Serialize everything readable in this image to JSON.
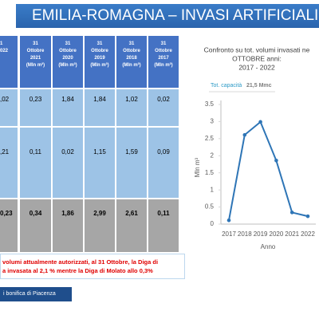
{
  "header": {
    "title": "EMILIA-ROMAGNA – INVASI ARTIFICIALI"
  },
  "table": {
    "header": [
      [
        "1",
        "022"
      ],
      [
        "31",
        "Ottobre",
        "2021",
        "(Mln m³)"
      ],
      [
        "31",
        "Ottobre",
        "2020",
        "(Mln m³)"
      ],
      [
        "31",
        "Ottobre",
        "2019",
        "(Mln m³)"
      ],
      [
        "31",
        "Ottobre",
        "2018",
        "(Mln m³)"
      ],
      [
        "31",
        "Ottobre",
        "2017",
        "(Mln m³)"
      ]
    ],
    "rows": [
      [
        ",02",
        "0,23",
        "1,84",
        "1,84",
        "1,02",
        "0,02"
      ],
      [
        ",21",
        "0,11",
        "0,02",
        "1,15",
        "1,59",
        "0,09"
      ],
      [
        "0,23",
        "0,34",
        "1,86",
        "2,99",
        "2,61",
        "0,11"
      ]
    ]
  },
  "note": [
    "volumi attualmente autorizzati, al 31 Ottobre, la Diga di",
    "a invasata al 2,1 % mentre la Diga di Molato allo 0,3%"
  ],
  "footer": "i bonifica di Piacenza",
  "chart_data": {
    "type": "line",
    "title_lines": [
      "Confronto su tot. volumi invasati ne",
      "OTTOBRE anni:",
      "2017 - 2022"
    ],
    "annotation": {
      "label": "Tot. capacità",
      "value": "21,5 Mmc"
    },
    "x_label": "Anno",
    "y_label": "Mln m³",
    "categories": [
      "2017",
      "2018",
      "2019",
      "2020",
      "2021",
      "2022"
    ],
    "values": [
      0.11,
      2.61,
      2.99,
      1.86,
      0.34,
      0.23
    ],
    "color": "#2e75b6",
    "ylim": [
      0,
      3.5
    ],
    "yticks": [
      0,
      0.5,
      1,
      1.5,
      2,
      2.5,
      3,
      3.5
    ],
    "grid": false
  }
}
